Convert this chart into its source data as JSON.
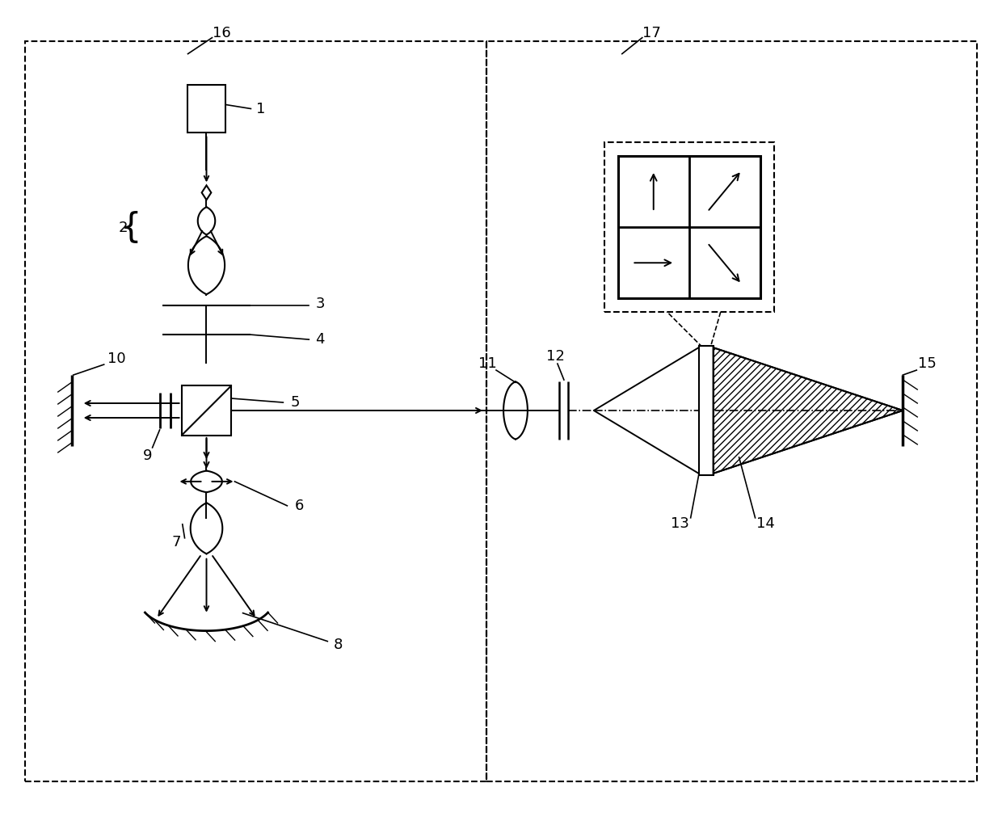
{
  "bg_color": "#ffffff",
  "fig_width": 12.4,
  "fig_height": 10.16,
  "dpi": 100,
  "xlim": [
    0,
    12.4
  ],
  "ylim": [
    0,
    10.16
  ]
}
